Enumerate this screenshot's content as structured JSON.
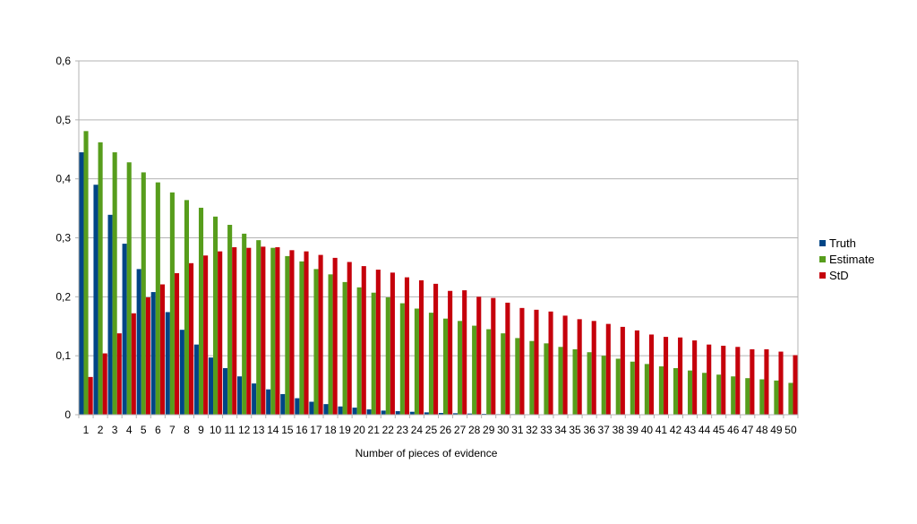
{
  "chart_data": {
    "type": "bar",
    "xlabel": "Number of pieces of evidence",
    "ylabel": "",
    "ylim": [
      0,
      0.6
    ],
    "yticks": [
      0,
      0.1,
      0.2,
      0.3,
      0.4,
      0.5,
      0.6
    ],
    "yticklabels": [
      "0",
      "0,1",
      "0,2",
      "0,3",
      "0,4",
      "0,5",
      "0,6"
    ],
    "grid": true,
    "legend": "right",
    "categories": [
      "1",
      "2",
      "3",
      "4",
      "5",
      "6",
      "7",
      "8",
      "9",
      "10",
      "11",
      "12",
      "13",
      "14",
      "15",
      "16",
      "17",
      "18",
      "19",
      "20",
      "21",
      "22",
      "23",
      "24",
      "25",
      "26",
      "27",
      "28",
      "29",
      "30",
      "31",
      "32",
      "33",
      "34",
      "35",
      "36",
      "37",
      "38",
      "39",
      "40",
      "41",
      "42",
      "43",
      "44",
      "45",
      "46",
      "47",
      "48",
      "49",
      "50"
    ],
    "series": [
      {
        "name": "Truth",
        "color": "#004586",
        "values": [
          0.445,
          0.39,
          0.339,
          0.29,
          0.247,
          0.208,
          0.174,
          0.144,
          0.119,
          0.097,
          0.079,
          0.065,
          0.053,
          0.043,
          0.035,
          0.028,
          0.022,
          0.018,
          0.014,
          0.012,
          0.009,
          0.007,
          0.006,
          0.005,
          0.004,
          0.003,
          0.0025,
          0.002,
          0.0015,
          0.001,
          0.001,
          0.0008,
          0.0006,
          0.0005,
          0.0004,
          0.0003,
          0.0003,
          0.0002,
          0.0002,
          0.0001,
          0.0001,
          0.0001,
          0.0001,
          0,
          0,
          0,
          0,
          0,
          0,
          0
        ]
      },
      {
        "name": "Estimate",
        "color": "#579d1c",
        "values": [
          0.481,
          0.462,
          0.445,
          0.428,
          0.411,
          0.394,
          0.377,
          0.364,
          0.351,
          0.336,
          0.322,
          0.307,
          0.296,
          0.283,
          0.269,
          0.26,
          0.247,
          0.238,
          0.225,
          0.216,
          0.207,
          0.199,
          0.189,
          0.18,
          0.173,
          0.163,
          0.159,
          0.151,
          0.145,
          0.138,
          0.13,
          0.125,
          0.121,
          0.115,
          0.111,
          0.106,
          0.1,
          0.095,
          0.09,
          0.086,
          0.082,
          0.079,
          0.075,
          0.071,
          0.068,
          0.065,
          0.062,
          0.06,
          0.058,
          0.054
        ]
      },
      {
        "name": "StD",
        "color": "#c5000b",
        "values": [
          0.064,
          0.104,
          0.138,
          0.172,
          0.199,
          0.221,
          0.24,
          0.257,
          0.27,
          0.277,
          0.284,
          0.283,
          0.285,
          0.284,
          0.279,
          0.277,
          0.271,
          0.266,
          0.259,
          0.252,
          0.246,
          0.241,
          0.233,
          0.228,
          0.222,
          0.21,
          0.211,
          0.2,
          0.198,
          0.19,
          0.181,
          0.178,
          0.175,
          0.168,
          0.162,
          0.159,
          0.154,
          0.149,
          0.143,
          0.136,
          0.132,
          0.131,
          0.126,
          0.119,
          0.117,
          0.115,
          0.111,
          0.111,
          0.107,
          0.101
        ]
      }
    ]
  }
}
